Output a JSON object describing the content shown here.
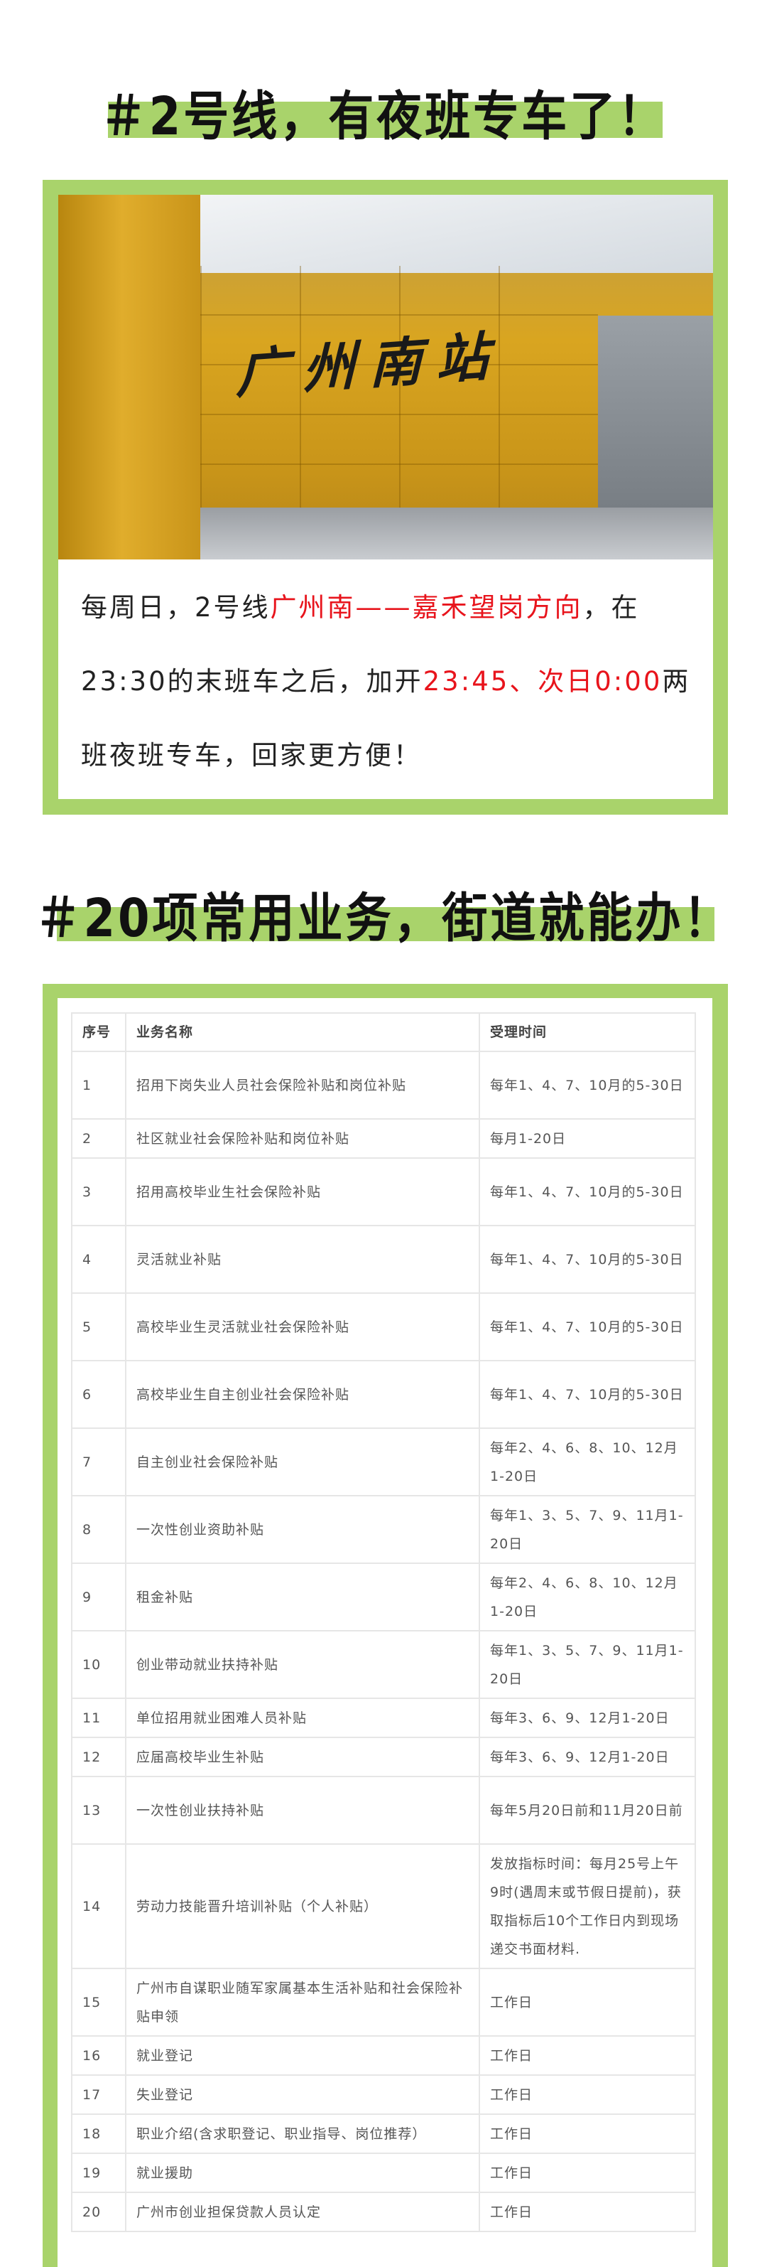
{
  "section1": {
    "title": "＃2号线，有夜班专车了！",
    "photo_sign": "广州南站",
    "paragraph": {
      "p1": "每周日，2号线",
      "p2": "广州南——嘉禾望岗方向",
      "p3": "，在23:30的末班车之后，加开",
      "p4": "23:45、次日0:00",
      "p5": "两班夜班专车，回家更方便！"
    }
  },
  "section2": {
    "title": "＃20项常用业务，街道就能办！",
    "table": {
      "headers": [
        "序号",
        "业务名称",
        "受理时间"
      ],
      "rows": [
        [
          "1",
          "招用下岗失业人员社会保险补贴和岗位补贴",
          "每年1、4、7、10月的5-30日"
        ],
        [
          "2",
          "社区就业社会保险补贴和岗位补贴",
          "每月1-20日"
        ],
        [
          "3",
          "招用高校毕业生社会保险补贴",
          "每年1、4、7、10月的5-30日"
        ],
        [
          "4",
          "灵活就业补贴",
          "每年1、4、7、10月的5-30日"
        ],
        [
          "5",
          "高校毕业生灵活就业社会保险补贴",
          "每年1、4、7、10月的5-30日"
        ],
        [
          "6",
          "高校毕业生自主创业社会保险补贴",
          "每年1、4、7、10月的5-30日"
        ],
        [
          "7",
          "自主创业社会保险补贴",
          "每年2、4、6、8、10、12月1-20日"
        ],
        [
          "8",
          "一次性创业资助补贴",
          "每年1、3、5、7、9、11月1-20日"
        ],
        [
          "9",
          "租金补贴",
          "每年2、4、6、8、10、12月1-20日"
        ],
        [
          "10",
          "创业带动就业扶持补贴",
          "每年1、3、5、7、9、11月1-20日"
        ],
        [
          "11",
          "单位招用就业困难人员补贴",
          "每年3、6、9、12月1-20日"
        ],
        [
          "12",
          "应届高校毕业生补贴",
          "每年3、6、9、12月1-20日"
        ],
        [
          "13",
          "一次性创业扶持补贴",
          "每年5月20日前和11月20日前"
        ],
        [
          "14",
          "劳动力技能晋升培训补贴（个人补贴）",
          "发放指标时间：每月25号上午9时(遇周末或节假日提前)，获取指标后10个工作日内到现场递交书面材料."
        ],
        [
          "15",
          "广州市自谋职业随军家属基本生活补贴和社会保险补贴申领",
          "工作日"
        ],
        [
          "16",
          "就业登记",
          "工作日"
        ],
        [
          "17",
          "失业登记",
          "工作日"
        ],
        [
          "18",
          "职业介绍(含求职登记、职业指导、岗位推荐）",
          "工作日"
        ],
        [
          "19",
          "就业援助",
          "工作日"
        ],
        [
          "20",
          "广州市创业担保贷款人员认定",
          "工作日"
        ]
      ]
    }
  },
  "colors": {
    "accent_green": "#a9d36b",
    "highlight_red": "#e8141c"
  }
}
